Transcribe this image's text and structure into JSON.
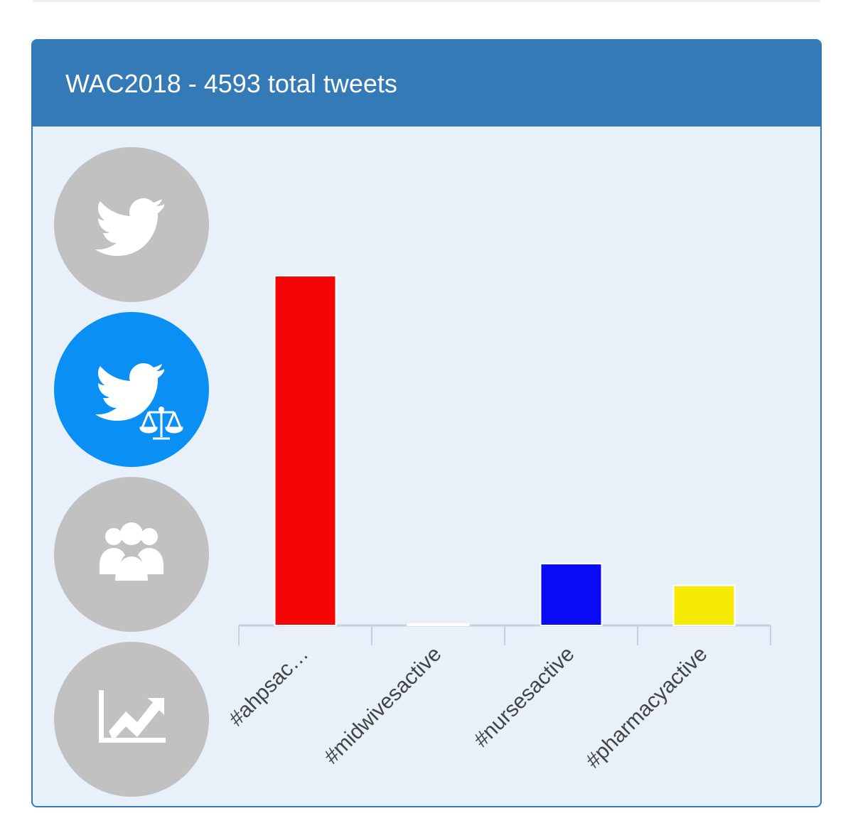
{
  "panel": {
    "title": "WAC2018 - 4593 total tweets",
    "header_color": "#337ab7",
    "body_color": "#e8f1fa"
  },
  "sidebar": {
    "buttons": [
      {
        "icon": "twitter-bird-icon",
        "active": false
      },
      {
        "icon": "twitter-bird-scales-icon",
        "active": true
      },
      {
        "icon": "group-users-icon",
        "active": false
      },
      {
        "icon": "trend-chart-icon",
        "active": false
      }
    ],
    "inactive_color": "#c1c1c1",
    "active_color": "#0a8ff5"
  },
  "chart_data": {
    "type": "bar",
    "categories": [
      "#ahpsac…",
      "#midwivesactive",
      "#nursesactive",
      "#pharmacyactive"
    ],
    "values": [
      3510,
      15,
      620,
      400
    ],
    "colors": [
      "#f50505",
      "#ffffff",
      "#0a0af5",
      "#f5eb05"
    ],
    "ylim": [
      0,
      3510
    ],
    "grid": false,
    "legend": "none",
    "xlabel": "",
    "ylabel": ""
  }
}
